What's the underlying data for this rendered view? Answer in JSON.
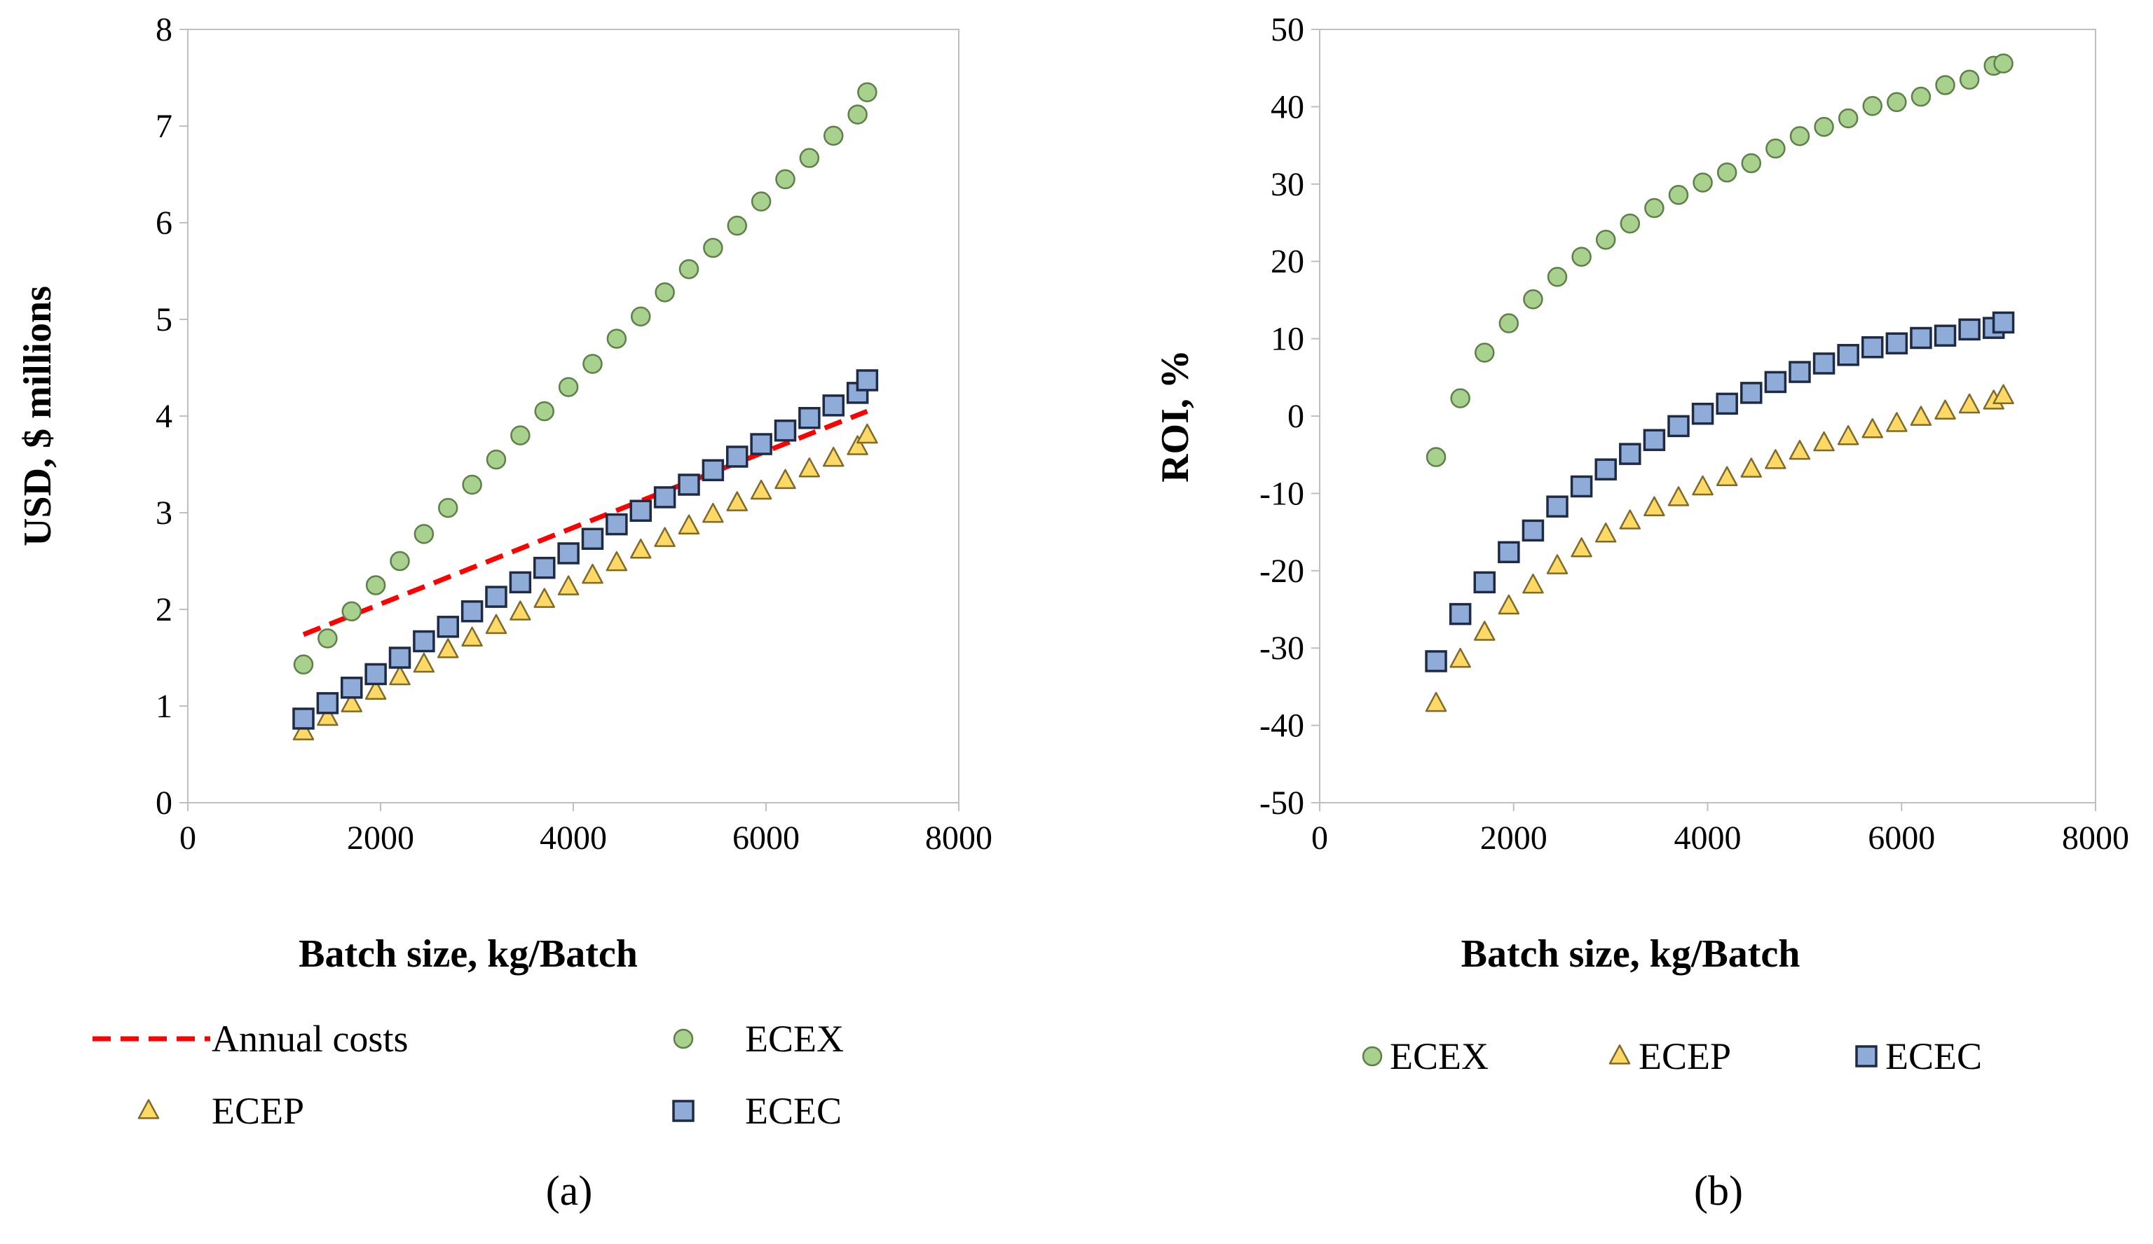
{
  "chart_data": [
    {
      "type": "scatter",
      "panel_label": "(a)",
      "xlabel": "Batch size, kg/Batch",
      "ylabel": "USD, $ millions",
      "xlim": [
        0,
        8000
      ],
      "ylim": [
        0,
        8
      ],
      "x_ticks": [
        "0",
        "2000",
        "4000",
        "6000",
        "8000"
      ],
      "y_ticks": [
        "0",
        "1",
        "2",
        "3",
        "4",
        "5",
        "6",
        "7",
        "8"
      ],
      "grid": false,
      "x": [
        1200,
        1450,
        1700,
        1950,
        2200,
        2450,
        2700,
        2950,
        3200,
        3450,
        3700,
        3950,
        4200,
        4450,
        4700,
        4950,
        5200,
        5450,
        5700,
        5950,
        6200,
        6450,
        6700,
        6950,
        7050
      ],
      "series": [
        {
          "name": "ECEX",
          "marker": "circle",
          "color": "#a9d18e",
          "stroke": "#5f7f4a",
          "values": [
            1.43,
            1.7,
            1.98,
            2.25,
            2.5,
            2.78,
            3.05,
            3.29,
            3.55,
            3.8,
            4.05,
            4.3,
            4.54,
            4.8,
            5.03,
            5.28,
            5.52,
            5.74,
            5.97,
            6.22,
            6.45,
            6.67,
            6.9,
            7.12,
            7.35
          ]
        },
        {
          "name": "ECEP",
          "marker": "triangle",
          "color": "#ffd966",
          "stroke": "#7f6a2a",
          "values": [
            0.73,
            0.88,
            1.02,
            1.15,
            1.3,
            1.43,
            1.58,
            1.7,
            1.83,
            1.97,
            2.1,
            2.23,
            2.35,
            2.48,
            2.61,
            2.73,
            2.86,
            2.98,
            3.1,
            3.22,
            3.33,
            3.45,
            3.56,
            3.68,
            3.8
          ]
        },
        {
          "name": "ECEC",
          "marker": "square",
          "color": "#8fabd8",
          "stroke": "#1f2a44",
          "values": [
            0.87,
            1.03,
            1.19,
            1.33,
            1.5,
            1.67,
            1.82,
            1.98,
            2.13,
            2.28,
            2.43,
            2.58,
            2.73,
            2.88,
            3.02,
            3.16,
            3.29,
            3.44,
            3.58,
            3.71,
            3.85,
            3.98,
            4.11,
            4.24,
            4.37
          ]
        }
      ],
      "lines": [
        {
          "name": "Annual costs",
          "style": "dashed",
          "color": "#ff0000",
          "x": [
            1200,
            7050
          ],
          "y": [
            1.74,
            4.05
          ]
        }
      ],
      "legend": {
        "placement": "bottom",
        "items": [
          "Annual costs",
          "ECEX",
          "ECEP",
          "ECEC"
        ]
      }
    },
    {
      "type": "scatter",
      "panel_label": "(b)",
      "xlabel": "Batch size, kg/Batch",
      "ylabel": "ROI, %",
      "xlim": [
        0,
        8000
      ],
      "ylim": [
        -50,
        50
      ],
      "x_ticks": [
        "0",
        "2000",
        "4000",
        "6000",
        "8000"
      ],
      "y_ticks": [
        "-50",
        "-40",
        "-30",
        "-20",
        "-10",
        "0",
        "10",
        "20",
        "30",
        "40",
        "50"
      ],
      "grid": false,
      "x": [
        1200,
        1450,
        1700,
        1950,
        2200,
        2450,
        2700,
        2950,
        3200,
        3450,
        3700,
        3950,
        4200,
        4450,
        4700,
        4950,
        5200,
        5450,
        5700,
        5950,
        6200,
        6450,
        6700,
        6950,
        7050
      ],
      "series": [
        {
          "name": "ECEX",
          "marker": "circle",
          "color": "#a9d18e",
          "stroke": "#5f7f4a",
          "values": [
            -5.3,
            2.3,
            8.2,
            12.0,
            15.1,
            18.0,
            20.6,
            22.8,
            24.9,
            26.9,
            28.6,
            30.2,
            31.5,
            32.7,
            34.6,
            36.2,
            37.4,
            38.5,
            40.1,
            40.6,
            41.3,
            42.8,
            43.5,
            45.3,
            45.6
          ]
        },
        {
          "name": "ECEP",
          "marker": "triangle",
          "color": "#ffd966",
          "stroke": "#7f6a2a",
          "values": [
            -37.2,
            -31.5,
            -28.0,
            -24.6,
            -21.9,
            -19.4,
            -17.2,
            -15.3,
            -13.6,
            -11.9,
            -10.6,
            -9.2,
            -8.0,
            -6.9,
            -5.8,
            -4.6,
            -3.5,
            -2.7,
            -1.8,
            -1.0,
            -0.2,
            0.6,
            1.4,
            1.9,
            2.6
          ]
        },
        {
          "name": "ECEC",
          "marker": "square",
          "color": "#8fabd8",
          "stroke": "#1f2a44",
          "values": [
            -31.7,
            -25.6,
            -21.5,
            -17.6,
            -14.8,
            -11.7,
            -9.1,
            -6.9,
            -4.9,
            -3.1,
            -1.3,
            0.3,
            1.6,
            3.0,
            4.4,
            5.7,
            6.8,
            7.9,
            8.9,
            9.4,
            10.1,
            10.4,
            11.2,
            11.4,
            12.1
          ]
        }
      ],
      "legend": {
        "placement": "bottom",
        "items": [
          "ECEX",
          "ECEP",
          "ECEC"
        ]
      }
    }
  ]
}
